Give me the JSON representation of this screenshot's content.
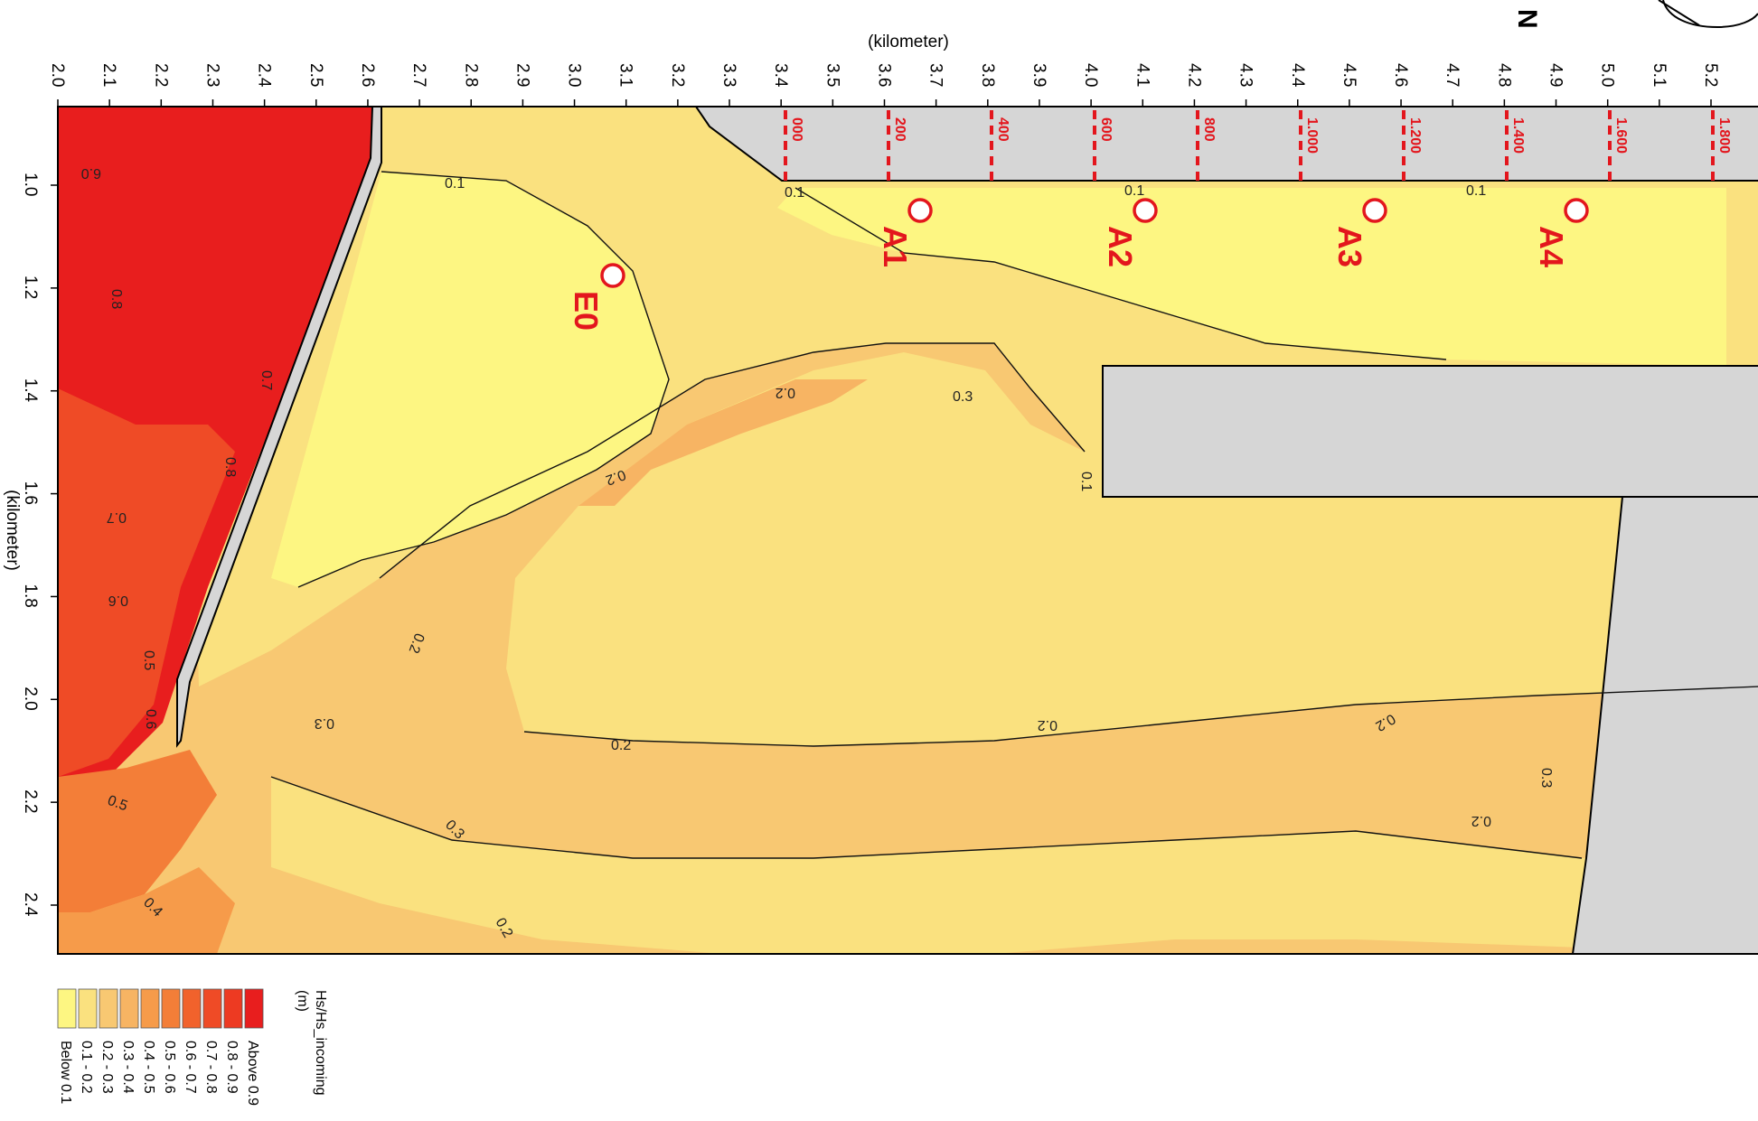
{
  "x_axis": {
    "title": "(kilometer)",
    "ticks": [
      "2.0",
      "2.1",
      "2.2",
      "2.3",
      "2.4",
      "2.5",
      "2.6",
      "2.7",
      "2.8",
      "2.9",
      "3.0",
      "3.1",
      "3.2",
      "3.3",
      "3.4",
      "3.5",
      "3.6",
      "3.7",
      "3.8",
      "3.9",
      "4.0",
      "4.1",
      "4.2",
      "4.3",
      "4.4",
      "4.5",
      "4.6",
      "4.7",
      "4.8",
      "4.9",
      "5.0",
      "5.1",
      "5.2"
    ]
  },
  "y_axis": {
    "title": "(kilometer)",
    "ticks": [
      "1.0",
      "1.2",
      "1.4",
      "1.6",
      "1.8",
      "2.0",
      "2.2",
      "2.4"
    ]
  },
  "north_label": "N",
  "chainage": [
    "000",
    "200",
    "400",
    "600",
    "800",
    "1.000",
    "1.200",
    "1.400",
    "1.600",
    "1.800"
  ],
  "stations": [
    "A1",
    "A2",
    "A3",
    "A4",
    "E0"
  ],
  "contour_labels": [
    "0.1",
    "0.1",
    "0.1",
    "0.1",
    "0.1",
    "0.2",
    "0.2",
    "0.2",
    "0.2",
    "0.2",
    "0.2",
    "0.2",
    "0.2",
    "0.3",
    "0.3",
    "0.3",
    "0.3",
    "0.4",
    "0.5",
    "0.5",
    "0.6",
    "0.6",
    "0.7",
    "0.7",
    "0.8",
    "0.8",
    "6.0"
  ],
  "legend": {
    "title": "Hs/Hs_incoming",
    "unit": "(m)",
    "classes": [
      {
        "label": "Above 0.9",
        "color": "#e81e1e"
      },
      {
        "label": "0.8 - 0.9",
        "color": "#ed3a22"
      },
      {
        "label": "0.7 - 0.8",
        "color": "#ef4b26"
      },
      {
        "label": "0.6 - 0.7",
        "color": "#f1622c"
      },
      {
        "label": "0.5 - 0.6",
        "color": "#f37e38"
      },
      {
        "label": "0.4 - 0.5",
        "color": "#f69b4a"
      },
      {
        "label": "0.3 - 0.4",
        "color": "#f7b463"
      },
      {
        "label": "0.2 - 0.3",
        "color": "#f8c872"
      },
      {
        "label": "0.1 - 0.2",
        "color": "#fae17f"
      },
      {
        "label": "Below 0.1",
        "color": "#fdf682"
      }
    ]
  },
  "colors": {
    "land": "#d6d6d6",
    "station": "#e3161d"
  }
}
